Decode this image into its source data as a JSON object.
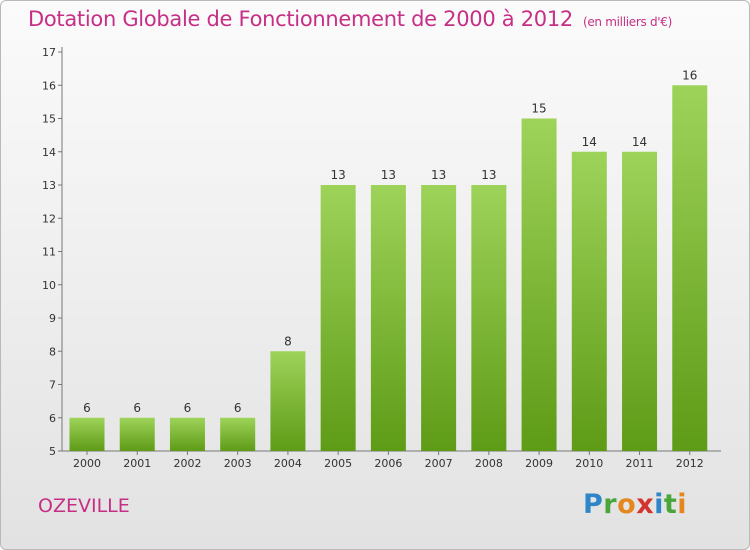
{
  "header": {
    "title": "Dotation Globale de Fonctionnement de 2000 à 2012",
    "unit": "(en milliers d'€)"
  },
  "footer": {
    "commune": "OZEVILLE",
    "logo": "Proxiti"
  },
  "colors": {
    "title": "#c72f86",
    "bar_top": "#9ed35a",
    "bar_bottom": "#5e9b16"
  },
  "chart_data": {
    "type": "bar",
    "title": "Dotation Globale de Fonctionnement de 2000 à 2012",
    "subtitle": "(en milliers d'€)",
    "xlabel": "",
    "ylabel": "",
    "categories": [
      "2000",
      "2001",
      "2002",
      "2003",
      "2004",
      "2005",
      "2006",
      "2007",
      "2008",
      "2009",
      "2010",
      "2011",
      "2012"
    ],
    "values": [
      6,
      6,
      6,
      6,
      8,
      13,
      13,
      13,
      13,
      15,
      14,
      14,
      16
    ],
    "ylim": [
      5,
      17
    ],
    "yticks": [
      5,
      6,
      7,
      8,
      9,
      10,
      11,
      12,
      13,
      14,
      15,
      16,
      17
    ],
    "grid": false,
    "data_labels": true,
    "legend": "none"
  }
}
